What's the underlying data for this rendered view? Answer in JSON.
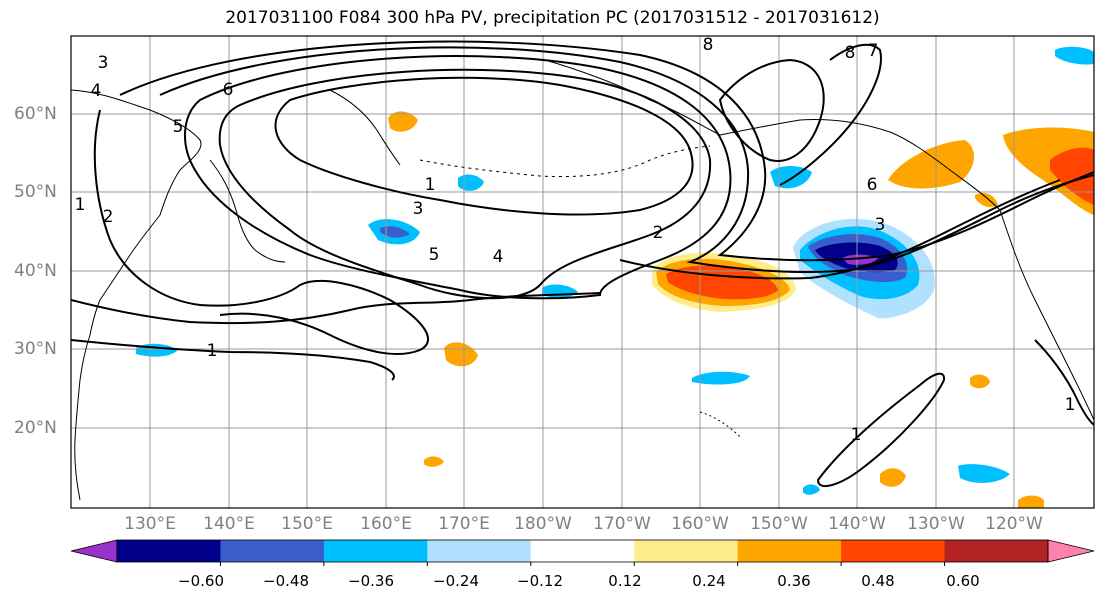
{
  "title": "2017031100 F084 300 hPa PV, precipitation PC (2017031512 - 2017031612)",
  "map": {
    "lat_labels": [
      "60°N",
      "50°N",
      "40°N",
      "30°N",
      "20°N"
    ],
    "lon_labels": [
      "130°E",
      "140°E",
      "150°E",
      "160°E",
      "170°E",
      "180°W",
      "170°W",
      "160°W",
      "150°W",
      "140°W",
      "130°W",
      "120°W"
    ],
    "label_color": "#808080",
    "pv_contour_labels": [
      "3",
      "4",
      "6",
      "5",
      "1",
      "2",
      "1",
      "3",
      "5",
      "4",
      "1",
      "2",
      "8",
      "7",
      "6",
      "3",
      "8",
      "1",
      "1"
    ],
    "contour_color": "#000000",
    "coastline_color": "#000000",
    "grid_color": "#999999"
  },
  "colorbar": {
    "tick_labels": [
      "−0.60",
      "−0.48",
      "−0.36",
      "−0.24",
      "−0.12",
      "0.12",
      "0.24",
      "0.36",
      "0.48",
      "0.60"
    ],
    "colors": [
      "#9932cc",
      "#00008b",
      "#3a5fcd",
      "#00bfff",
      "#b0e2ff",
      "#ffffff",
      "#ffec8b",
      "#ffa500",
      "#ff4500",
      "#b22222",
      "#ff82ab"
    ]
  }
}
